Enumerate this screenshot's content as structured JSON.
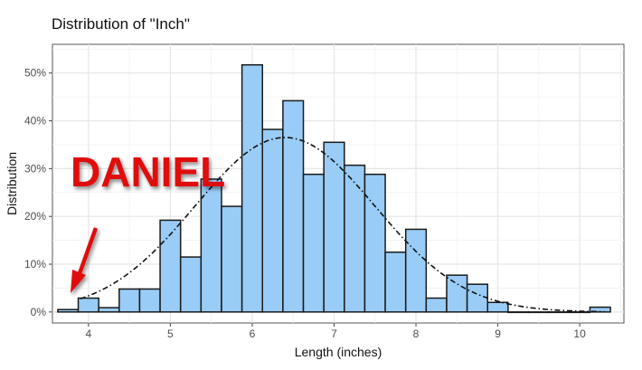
{
  "chart_data": {
    "type": "bar",
    "title": "Distribution of \"Inch\"",
    "xlabel": "Length (inches)",
    "ylabel": "Distribution",
    "bin_width": 0.25,
    "bin_centers": [
      3.75,
      4.0,
      4.25,
      4.5,
      4.75,
      5.0,
      5.25,
      5.5,
      5.75,
      6.0,
      6.25,
      6.5,
      6.75,
      7.0,
      7.25,
      7.5,
      7.75,
      8.0,
      8.25,
      8.5,
      8.75,
      9.0,
      9.25,
      9.5,
      9.75,
      10.0,
      10.25
    ],
    "values": [
      0.5,
      2.9,
      0.9,
      4.8,
      4.8,
      19.2,
      11.5,
      27.8,
      22.1,
      51.7,
      38.2,
      44.2,
      28.8,
      35.5,
      30.7,
      28.8,
      12.5,
      17.3,
      2.9,
      7.7,
      5.8,
      2.0,
      0,
      0,
      0,
      0,
      1.0
    ],
    "xlim": [
      3.56,
      10.54
    ],
    "ylim": [
      -2.3,
      56
    ],
    "x_ticks": [
      4,
      5,
      6,
      7,
      8,
      9,
      10
    ],
    "x_tick_labels": [
      "4",
      "5",
      "6",
      "7",
      "8",
      "9",
      "10"
    ],
    "y_ticks": [
      0,
      10,
      20,
      30,
      40,
      50
    ],
    "y_tick_labels": [
      "0%",
      "10%",
      "20%",
      "30%",
      "40%",
      "50%"
    ],
    "grid": true,
    "normal_curve": {
      "mean": 6.4,
      "sd": 1.1,
      "peak": 36.5,
      "range": [
        3.9,
        10.3
      ],
      "style": "dash-dot"
    },
    "bar_fill": "#99ccf7",
    "bar_stroke": "#1a1a1a",
    "annotation": {
      "text": "DANIEL",
      "color": "#e01010"
    }
  }
}
